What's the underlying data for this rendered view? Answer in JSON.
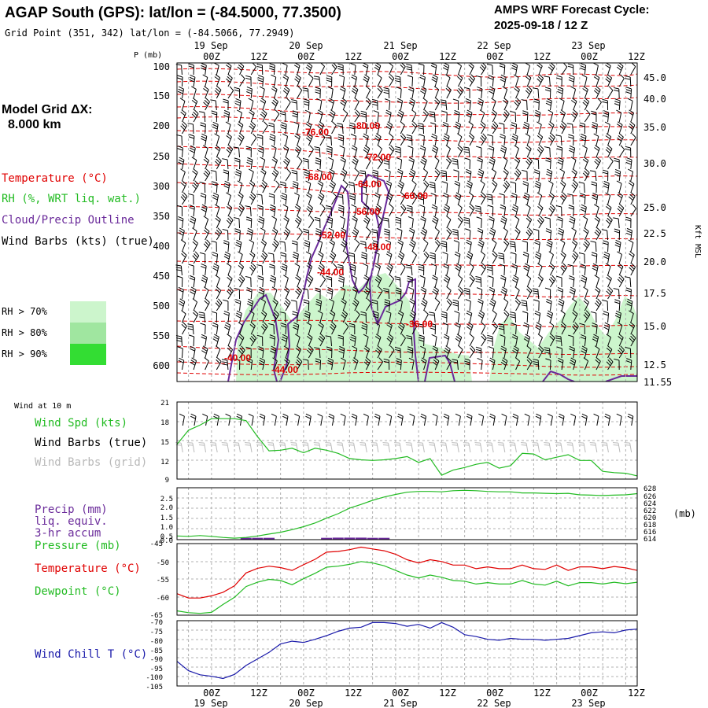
{
  "header": {
    "title": "AGAP South (GPS):  lat/lon = (-84.5000, 77.3500)",
    "subtitle": "Grid Point (351, 342) lat/lon = (-84.5066, 77.2949)",
    "cycle_label": "AMPS WRF Forecast Cycle:",
    "cycle_value": "2025-09-18 / 12  Z"
  },
  "model_grid": {
    "label": "Model Grid ΔX:",
    "value": "8.000 km"
  },
  "legend_upper": {
    "temperature": "Temperature (°C)",
    "rh": "RH (%, WRT liq. wat.)",
    "cloud": "Cloud/Precip Outline",
    "wind": "Wind Barbs (kts) (true)",
    "rh70": "RH > 70%",
    "rh80": "RH > 80%",
    "rh90": "RH > 90%"
  },
  "colors": {
    "temperature": "#e00000",
    "rh70": "#ccf5cc",
    "rh80": "#a0e6a0",
    "rh90": "#33dd33",
    "cloud": "#6a2a9a",
    "green_line": "#22bb22",
    "blue_line": "#1a1aaa",
    "grid": "#b0b0b0"
  },
  "time_axis": {
    "top_labels": [
      "19 Sep",
      "20 Sep",
      "21 Sep",
      "22 Sep",
      "23 Sep"
    ],
    "hour_labels": [
      "00Z",
      "12Z",
      "00Z",
      "12Z",
      "00Z",
      "12Z",
      "00Z",
      "12Z",
      "00Z",
      "12Z"
    ]
  },
  "chart_data": [
    {
      "type": "line",
      "id": "upper-cross-section",
      "title": "Time-height cross section",
      "ylabel": "P (mb)",
      "y_right_label": "Kft MSL",
      "pressure_ticks": [
        "100",
        "150",
        "200",
        "250",
        "300",
        "350",
        "400",
        "450",
        "500",
        "550",
        "600"
      ],
      "height_ticks": [
        "45.0",
        "40.0",
        "35.0",
        "30.0",
        "25.0",
        "22.5",
        "20.0",
        "17.5",
        "15.0",
        "12.5",
        "11.55"
      ],
      "contour_labels": [
        "-76.00",
        "-80.00",
        "-72.00",
        "-68.00",
        "-64.00",
        "-60.00",
        "-56.00",
        "-52.00",
        "-48.00",
        "-44.00",
        "-36.00",
        "-40.00",
        "-44.00"
      ]
    },
    {
      "type": "line",
      "id": "wind-10m",
      "title": "Wind at 10 m",
      "legend": [
        "Wind Spd (kts)",
        "Wind Barbs (true)",
        "Wind Barbs (grid)"
      ],
      "y_ticks": [
        "21",
        "18",
        "15",
        "12",
        "9"
      ],
      "ylim": [
        9,
        21
      ],
      "x_hours": [
        0,
        6,
        12,
        18,
        24,
        30,
        36,
        42,
        48,
        54,
        60,
        66,
        72,
        78,
        84,
        90,
        96,
        102,
        108,
        114,
        120,
        126,
        132,
        138,
        144,
        150,
        156,
        162,
        168,
        174,
        180,
        186,
        192,
        198,
        204,
        210,
        216,
        222,
        228,
        234,
        240
      ],
      "series": [
        {
          "name": "Wind Spd (kts)",
          "values": [
            14.4,
            16.6,
            17.4,
            18.4,
            18.4,
            18.4,
            18.1,
            15.6,
            13.4,
            13.5,
            13.8,
            13.1,
            13.8,
            13.5,
            13.0,
            12.2,
            12.0,
            11.9,
            12.0,
            12.2,
            12.5,
            11.6,
            12.2,
            9.6,
            10.4,
            10.8,
            11.3,
            11.6,
            10.7,
            11.1,
            13.0,
            12.9,
            12.0,
            12.4,
            12.8,
            11.9,
            11.9,
            10.2,
            10.0,
            9.9,
            9.5
          ]
        }
      ]
    },
    {
      "type": "line",
      "id": "precip-pressure",
      "legend": [
        "Precip (mm)",
        "liq. equiv.",
        "3-hr accum",
        "Pressure (mb)"
      ],
      "y_ticks": [
        "2.5",
        "2.0",
        "1.5",
        "1.0",
        "0.5",
        "0.0"
      ],
      "ylim": [
        0,
        2.5
      ],
      "y2_ticks": [
        "628",
        "626",
        "624",
        "622",
        "620",
        "618",
        "616",
        "614"
      ],
      "y2lim": [
        614,
        628
      ],
      "right_unit": "(mb)",
      "x_hours": [
        0,
        6,
        12,
        18,
        24,
        30,
        36,
        42,
        48,
        54,
        60,
        66,
        72,
        78,
        84,
        90,
        96,
        102,
        108,
        114,
        120,
        126,
        132,
        138,
        144,
        150,
        156,
        162,
        168,
        174,
        180,
        186,
        192,
        198,
        204,
        210,
        216,
        222,
        228,
        234,
        240
      ],
      "series": [
        {
          "name": "Pressure (mb)",
          "values": [
            615.0,
            614.9,
            615.1,
            614.9,
            614.6,
            614.4,
            614.6,
            615.0,
            615.5,
            616.0,
            616.7,
            617.5,
            618.5,
            619.8,
            621.0,
            622.5,
            623.5,
            624.6,
            625.5,
            626.2,
            626.8,
            627.0,
            627.0,
            626.9,
            627.2,
            627.3,
            627.2,
            627.0,
            626.9,
            626.9,
            626.6,
            626.6,
            626.5,
            626.4,
            626.5,
            626.1,
            626.0,
            625.9,
            626.0,
            626.1,
            626.4
          ]
        },
        {
          "name": "Precip (mm)",
          "values": [
            0,
            0,
            0,
            0,
            0,
            0,
            0.05,
            0.05,
            0.05,
            0,
            0,
            0,
            0,
            0.05,
            0.06,
            0.06,
            0.06,
            0.05,
            0.05,
            0,
            0,
            0,
            0,
            0,
            0,
            0,
            0,
            0,
            0,
            0,
            0,
            0,
            0,
            0,
            0,
            0,
            0,
            0,
            0,
            0,
            0
          ]
        }
      ]
    },
    {
      "type": "line",
      "id": "temp-dewpoint",
      "legend": [
        "Temperature (°C)",
        "Dewpoint (°C)"
      ],
      "y_ticks": [
        "-45",
        "-50",
        "-55",
        "-60",
        "-65"
      ],
      "ylim": [
        -65,
        -45
      ],
      "x_hours": [
        0,
        6,
        12,
        18,
        24,
        30,
        36,
        42,
        48,
        54,
        60,
        66,
        72,
        78,
        84,
        90,
        96,
        102,
        108,
        114,
        120,
        126,
        132,
        138,
        144,
        150,
        156,
        162,
        168,
        174,
        180,
        186,
        192,
        198,
        204,
        210,
        216,
        222,
        228,
        234,
        240
      ],
      "series": [
        {
          "name": "Temperature (°C)",
          "values": [
            -59.0,
            -60.2,
            -60.2,
            -59.6,
            -58.6,
            -56.8,
            -53.2,
            -51.9,
            -51.3,
            -51.7,
            -52.5,
            -50.9,
            -49.4,
            -47.4,
            -47.2,
            -46.7,
            -46.0,
            -46.5,
            -47.0,
            -48.0,
            -49.5,
            -50.4,
            -49.5,
            -50.0,
            -51.0,
            -51.0,
            -52.0,
            -51.5,
            -52.0,
            -52.0,
            -51.0,
            -52.0,
            -52.2,
            -51.0,
            -52.5,
            -51.5,
            -51.5,
            -52.0,
            -51.4,
            -51.8,
            -52.5
          ]
        },
        {
          "name": "Dewpoint (°C)",
          "values": [
            -63.8,
            -64.3,
            -64.5,
            -64.2,
            -62.0,
            -60.0,
            -57.0,
            -55.8,
            -55.0,
            -55.3,
            -56.5,
            -54.8,
            -53.3,
            -51.6,
            -51.3,
            -50.8,
            -50.0,
            -50.4,
            -51.2,
            -52.5,
            -53.8,
            -54.6,
            -53.8,
            -54.4,
            -55.3,
            -55.5,
            -56.3,
            -55.9,
            -56.3,
            -56.3,
            -55.3,
            -56.3,
            -56.6,
            -55.5,
            -56.8,
            -55.9,
            -55.9,
            -56.3,
            -55.8,
            -56.2,
            -55.8
          ]
        }
      ]
    },
    {
      "type": "line",
      "id": "wind-chill",
      "legend": [
        "Wind Chill T (°C)"
      ],
      "y_ticks": [
        "-70",
        "-75",
        "-80",
        "-85",
        "-90",
        "-95",
        "-100",
        "-105"
      ],
      "ylim": [
        -105,
        -70
      ],
      "x_hours": [
        0,
        6,
        12,
        18,
        24,
        30,
        36,
        42,
        48,
        54,
        60,
        66,
        72,
        78,
        84,
        90,
        96,
        102,
        108,
        114,
        120,
        126,
        132,
        138,
        144,
        150,
        156,
        162,
        168,
        174,
        180,
        186,
        192,
        198,
        204,
        210,
        216,
        222,
        228,
        234,
        240
      ],
      "series": [
        {
          "name": "Wind Chill T (°C)",
          "values": [
            -91.8,
            -96.8,
            -99.0,
            -99.8,
            -101.0,
            -98.8,
            -94.0,
            -90.5,
            -87.0,
            -82.5,
            -81.0,
            -81.7,
            -80.0,
            -78.0,
            -75.7,
            -74.0,
            -73.5,
            -71.0,
            -71.0,
            -71.5,
            -73.0,
            -72.0,
            -74.0,
            -71.0,
            -73.5,
            -77.5,
            -78.5,
            -80.0,
            -80.5,
            -79.5,
            -80.0,
            -80.0,
            -80.5,
            -80.0,
            -79.5,
            -78.0,
            -76.5,
            -76.0,
            -76.5,
            -75.0,
            -74.5
          ]
        }
      ]
    }
  ]
}
